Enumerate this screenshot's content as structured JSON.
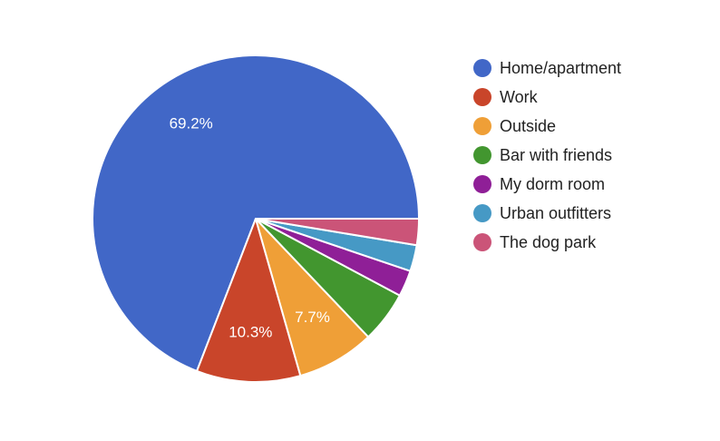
{
  "chart_data": {
    "type": "pie",
    "title": "",
    "start_angle_deg": 90,
    "direction": "counterclockwise",
    "slices": [
      {
        "label": "Home/apartment",
        "value": 69.2,
        "value_label": "69.2%",
        "color": "#4167c7"
      },
      {
        "label": "Work",
        "value": 10.3,
        "value_label": "10.3%",
        "color": "#c9452a"
      },
      {
        "label": "Outside",
        "value": 7.7,
        "value_label": "7.7%",
        "color": "#ef9f37"
      },
      {
        "label": "Bar with friends",
        "value": 5.1,
        "value_label": "",
        "color": "#42962f"
      },
      {
        "label": "My dorm room",
        "value": 2.6,
        "value_label": "",
        "color": "#8f1f97"
      },
      {
        "label": "Urban outfitters",
        "value": 2.6,
        "value_label": "",
        "color": "#4699c5"
      },
      {
        "label": "The dog park",
        "value": 2.6,
        "value_label": "",
        "color": "#cb5478"
      }
    ],
    "legend_position": "right"
  }
}
